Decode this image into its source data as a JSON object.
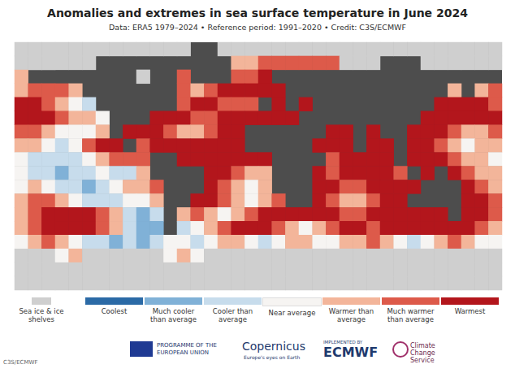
{
  "chart_data": {
    "type": "heatmap",
    "title": "Anomalies and extremes in sea surface temperature in June 2024",
    "subtitle": "Data: ERA5 1979–2024 • Reference period: 1991–2020 • Credit: C3S/ECMWF",
    "tick_labels": false,
    "grid": false,
    "color_classes": [
      {
        "value": 0,
        "label": "Sea ice & ice shelves",
        "color": "#cfcfcf"
      },
      {
        "value": 1,
        "label": "Coolest",
        "color": "#2b6aa6"
      },
      {
        "value": 2,
        "label": "Much cooler than average",
        "color": "#80b1d7"
      },
      {
        "value": 3,
        "label": "Cooler than average",
        "color": "#c7dcec"
      },
      {
        "value": 4,
        "label": "Near average",
        "color": "#f6f4f2"
      },
      {
        "value": 5,
        "label": "Warmer than average",
        "color": "#f3b59a"
      },
      {
        "value": 6,
        "label": "Much warmer than average",
        "color": "#dd5a4a"
      },
      {
        "value": 7,
        "label": "Warmest",
        "color": "#b3161c"
      }
    ],
    "cells": [
      [
        0,
        0,
        0,
        0,
        0,
        0,
        0,
        0,
        0,
        0,
        0,
        0,
        0,
        null,
        null,
        0,
        0,
        0,
        0,
        0,
        0,
        0,
        0,
        0,
        0,
        0,
        0,
        0,
        0,
        0,
        0,
        0,
        0,
        0,
        0,
        0
      ],
      [
        0,
        0,
        0,
        0,
        0,
        0,
        null,
        null,
        null,
        null,
        null,
        null,
        null,
        null,
        null,
        null,
        5,
        5,
        6,
        6,
        6,
        6,
        6,
        6,
        0,
        0,
        0,
        null,
        null,
        null,
        0,
        0,
        0,
        0,
        0,
        0
      ],
      [
        5,
        null,
        null,
        null,
        null,
        null,
        null,
        null,
        null,
        0,
        null,
        null,
        6,
        null,
        null,
        null,
        6,
        6,
        7,
        null,
        null,
        null,
        null,
        null,
        null,
        null,
        null,
        null,
        null,
        null,
        null,
        null,
        null,
        null,
        null,
        null
      ],
      [
        5,
        6,
        6,
        6,
        5,
        null,
        null,
        null,
        null,
        null,
        null,
        null,
        6,
        5,
        6,
        7,
        7,
        7,
        7,
        7,
        null,
        null,
        null,
        null,
        null,
        null,
        null,
        null,
        null,
        null,
        null,
        null,
        5,
        null,
        5,
        6
      ],
      [
        7,
        7,
        6,
        5,
        4,
        3,
        null,
        null,
        null,
        null,
        null,
        null,
        6,
        7,
        7,
        6,
        6,
        6,
        null,
        7,
        null,
        7,
        null,
        null,
        null,
        null,
        null,
        null,
        null,
        null,
        null,
        7,
        7,
        7,
        7,
        6
      ],
      [
        7,
        7,
        7,
        6,
        5,
        5,
        4,
        null,
        null,
        null,
        7,
        7,
        7,
        6,
        6,
        7,
        7,
        7,
        7,
        7,
        7,
        null,
        null,
        null,
        null,
        null,
        null,
        null,
        null,
        null,
        7,
        7,
        7,
        7,
        7,
        7
      ],
      [
        6,
        6,
        5,
        4,
        4,
        4,
        5,
        null,
        7,
        7,
        7,
        6,
        5,
        5,
        6,
        7,
        7,
        null,
        null,
        null,
        null,
        null,
        null,
        7,
        7,
        null,
        7,
        null,
        null,
        7,
        7,
        7,
        6,
        5,
        5,
        6
      ],
      [
        5,
        5,
        4,
        3,
        4,
        6,
        7,
        7,
        null,
        6,
        7,
        7,
        7,
        7,
        7,
        7,
        7,
        null,
        null,
        null,
        null,
        null,
        7,
        7,
        7,
        null,
        7,
        7,
        null,
        7,
        7,
        6,
        5,
        4,
        5,
        5
      ],
      [
        4,
        3,
        3,
        3,
        3,
        4,
        5,
        6,
        6,
        6,
        null,
        null,
        7,
        7,
        7,
        7,
        7,
        7,
        7,
        null,
        null,
        null,
        null,
        6,
        7,
        7,
        7,
        7,
        null,
        7,
        7,
        7,
        6,
        5,
        5,
        4
      ],
      [
        4,
        3,
        3,
        2,
        3,
        3,
        4,
        3,
        3,
        5,
        null,
        null,
        null,
        null,
        7,
        7,
        6,
        5,
        5,
        null,
        null,
        null,
        7,
        6,
        7,
        7,
        7,
        7,
        6,
        null,
        7,
        null,
        7,
        6,
        5,
        5
      ],
      [
        4,
        5,
        4,
        3,
        3,
        2,
        3,
        4,
        5,
        5,
        6,
        null,
        null,
        null,
        7,
        6,
        5,
        4,
        5,
        null,
        null,
        null,
        7,
        7,
        6,
        6,
        7,
        7,
        7,
        7,
        null,
        null,
        null,
        7,
        6,
        5
      ],
      [
        5,
        6,
        6,
        5,
        4,
        3,
        3,
        3,
        4,
        4,
        5,
        null,
        null,
        7,
        7,
        6,
        5,
        4,
        5,
        6,
        null,
        null,
        7,
        6,
        5,
        5,
        6,
        7,
        7,
        null,
        null,
        null,
        null,
        7,
        7,
        6
      ],
      [
        5,
        6,
        7,
        7,
        7,
        7,
        6,
        5,
        3,
        2,
        3,
        null,
        5,
        6,
        5,
        4,
        5,
        6,
        7,
        7,
        7,
        7,
        7,
        7,
        6,
        6,
        7,
        7,
        7,
        7,
        7,
        7,
        null,
        7,
        7,
        6
      ],
      [
        5,
        6,
        7,
        7,
        7,
        7,
        6,
        5,
        3,
        2,
        2,
        null,
        3,
        4,
        5,
        6,
        7,
        7,
        7,
        6,
        5,
        4,
        5,
        6,
        7,
        7,
        6,
        7,
        7,
        7,
        7,
        7,
        7,
        7,
        6,
        5
      ],
      [
        4,
        5,
        6,
        5,
        4,
        3,
        3,
        2,
        3,
        2,
        3,
        4,
        4,
        3,
        4,
        5,
        5,
        4,
        3,
        4,
        5,
        5,
        4,
        4,
        5,
        5,
        6,
        5,
        4,
        3,
        4,
        5,
        6,
        5,
        4,
        4
      ],
      [
        0,
        0,
        0,
        4,
        5,
        0,
        0,
        0,
        0,
        0,
        0,
        4,
        5,
        4,
        0,
        0,
        0,
        0,
        0,
        0,
        0,
        0,
        0,
        0,
        0,
        0,
        0,
        0,
        0,
        0,
        0,
        0,
        0,
        0,
        0,
        0
      ],
      [
        0,
        0,
        0,
        0,
        0,
        0,
        0,
        0,
        0,
        0,
        0,
        0,
        0,
        0,
        0,
        0,
        0,
        0,
        0,
        0,
        0,
        0,
        0,
        0,
        0,
        0,
        0,
        0,
        0,
        0,
        0,
        0,
        0,
        0,
        0,
        0
      ],
      [
        0,
        0,
        0,
        0,
        0,
        0,
        0,
        0,
        0,
        0,
        0,
        0,
        0,
        0,
        0,
        0,
        0,
        0,
        0,
        0,
        0,
        0,
        0,
        0,
        0,
        0,
        0,
        0,
        0,
        0,
        0,
        0,
        0,
        0,
        0,
        0
      ]
    ]
  },
  "footer": {
    "eu": "PROGRAMME OF THE EUROPEAN UNION",
    "copernicus": "Copernicus",
    "copernicus_tagline": "Europe's eyes on Earth",
    "implemented_by": "IMPLEMENTED BY",
    "ecmwf": "ECMWF",
    "c3s": "Climate Change Service",
    "watermark": "C3S/ECMWF"
  }
}
